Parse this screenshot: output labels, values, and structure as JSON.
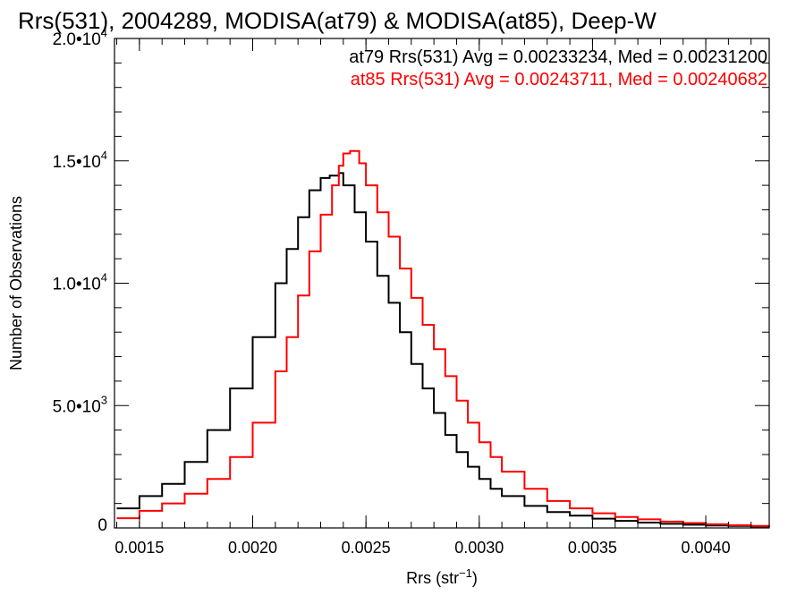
{
  "chart_data": {
    "type": "line",
    "title": "Rrs(531), 2004289, MODISA(at79) & MODISA(at85), Deep-W",
    "xlabel": "Rrs (str",
    "xlabel_sup": "−1",
    "xlabel_close": ")",
    "ylabel": "Number of Observations",
    "xlim": [
      0.00139,
      0.00428
    ],
    "ylim": [
      0,
      20000
    ],
    "x_ticks": [
      {
        "value": 0.0015,
        "label": "0.0015"
      },
      {
        "value": 0.002,
        "label": "0.0020"
      },
      {
        "value": 0.0025,
        "label": "0.0025"
      },
      {
        "value": 0.003,
        "label": "0.0030"
      },
      {
        "value": 0.0035,
        "label": "0.0035"
      },
      {
        "value": 0.004,
        "label": "0.0040"
      }
    ],
    "y_ticks": [
      {
        "value": 0,
        "mant": "0",
        "exp": ""
      },
      {
        "value": 5000,
        "mant": "5.0•10",
        "exp": "3"
      },
      {
        "value": 10000,
        "mant": "1.0•10",
        "exp": "4"
      },
      {
        "value": 15000,
        "mant": "1.5•10",
        "exp": "4"
      },
      {
        "value": 20000,
        "mant": "2.0•10",
        "exp": "4"
      }
    ],
    "annotations": [
      {
        "text": "at79 Rrs(531) Avg = 0.00233234, Med = 0.00231200",
        "color": "#000000"
      },
      {
        "text": "at85 Rrs(531) Avg = 0.00243711, Med = 0.00240682",
        "color": "#ff0000"
      }
    ],
    "series": [
      {
        "color": "#000000",
        "step": true,
        "x": [
          0.0014,
          0.0015,
          0.0016,
          0.0017,
          0.0018,
          0.0019,
          0.002,
          0.0021,
          0.00215,
          0.0022,
          0.00225,
          0.0023,
          0.00234,
          0.00238,
          0.0024,
          0.00245,
          0.0025,
          0.00255,
          0.0026,
          0.00265,
          0.0027,
          0.00275,
          0.0028,
          0.00285,
          0.0029,
          0.00295,
          0.003,
          0.00305,
          0.0031,
          0.0032,
          0.0033,
          0.0034,
          0.0035,
          0.0036,
          0.0037,
          0.0038,
          0.0039,
          0.004,
          0.0041,
          0.0042,
          0.00428
        ],
        "y": [
          800,
          1300,
          1800,
          2700,
          4000,
          5700,
          7800,
          10000,
          11400,
          12700,
          13800,
          14300,
          14400,
          14500,
          14000,
          12900,
          11700,
          10300,
          9200,
          8000,
          6700,
          5700,
          4700,
          3800,
          3100,
          2500,
          2000,
          1600,
          1300,
          900,
          650,
          500,
          380,
          290,
          220,
          170,
          130,
          100,
          80,
          60,
          50
        ]
      },
      {
        "color": "#ff0000",
        "step": true,
        "x": [
          0.0014,
          0.0015,
          0.0016,
          0.0017,
          0.0018,
          0.0019,
          0.002,
          0.0021,
          0.00215,
          0.0022,
          0.00225,
          0.0023,
          0.00235,
          0.00238,
          0.0024,
          0.00243,
          0.00247,
          0.0025,
          0.00255,
          0.0026,
          0.00265,
          0.0027,
          0.00275,
          0.0028,
          0.00285,
          0.0029,
          0.00295,
          0.003,
          0.00305,
          0.0031,
          0.0032,
          0.0033,
          0.0034,
          0.0035,
          0.0036,
          0.0037,
          0.0038,
          0.0039,
          0.004,
          0.0041,
          0.0042,
          0.00428
        ],
        "y": [
          400,
          700,
          1000,
          1400,
          2000,
          2900,
          4300,
          6400,
          7800,
          9500,
          11300,
          12800,
          14000,
          14800,
          15300,
          15400,
          14900,
          14000,
          12900,
          11900,
          10600,
          9400,
          8300,
          7300,
          6200,
          5200,
          4300,
          3500,
          2900,
          2300,
          1600,
          1100,
          800,
          600,
          450,
          350,
          260,
          200,
          150,
          110,
          80,
          60
        ]
      }
    ]
  }
}
